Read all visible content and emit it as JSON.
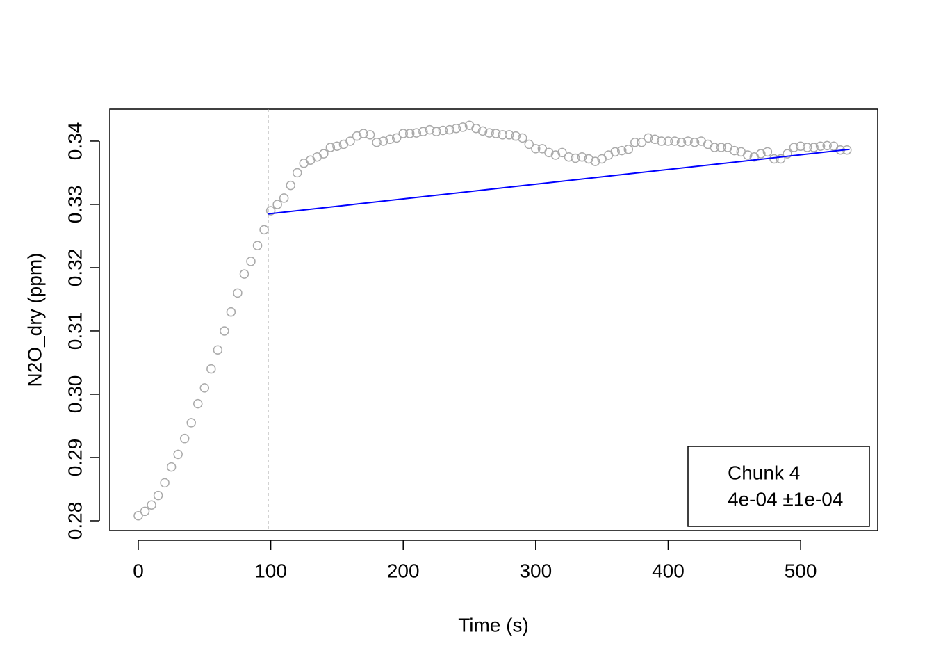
{
  "chart_data": {
    "type": "scatter",
    "x_label": "Time (s)",
    "y_label": "N2O_dry (ppm)",
    "x": [
      0,
      5,
      10,
      15,
      20,
      25,
      30,
      35,
      40,
      45,
      50,
      55,
      60,
      65,
      70,
      75,
      80,
      85,
      90,
      95,
      100,
      105,
      110,
      115,
      120,
      125,
      130,
      135,
      140,
      145,
      150,
      155,
      160,
      165,
      170,
      175,
      180,
      185,
      190,
      195,
      200,
      205,
      210,
      215,
      220,
      225,
      230,
      235,
      240,
      245,
      250,
      255,
      260,
      265,
      270,
      275,
      280,
      285,
      290,
      295,
      300,
      305,
      310,
      315,
      320,
      325,
      330,
      335,
      340,
      345,
      350,
      355,
      360,
      365,
      370,
      375,
      380,
      385,
      390,
      395,
      400,
      405,
      410,
      415,
      420,
      425,
      430,
      435,
      440,
      445,
      450,
      455,
      460,
      465,
      470,
      475,
      480,
      485,
      490,
      495,
      500,
      505,
      510,
      515,
      520,
      525,
      530,
      535
    ],
    "series": [
      {
        "color": "#aaaaaa",
        "values": [
          0.2808,
          0.2815,
          0.2825,
          0.284,
          0.286,
          0.2885,
          0.2905,
          0.293,
          0.2955,
          0.2985,
          0.301,
          0.304,
          0.307,
          0.31,
          0.313,
          0.316,
          0.319,
          0.321,
          0.3235,
          0.326,
          0.329,
          0.33,
          0.331,
          0.333,
          0.335,
          0.3365,
          0.337,
          0.3375,
          0.338,
          0.339,
          0.3392,
          0.3395,
          0.34,
          0.3408,
          0.3412,
          0.341,
          0.3398,
          0.34,
          0.3403,
          0.3405,
          0.3412,
          0.3412,
          0.3413,
          0.3415,
          0.3418,
          0.3415,
          0.3417,
          0.3418,
          0.342,
          0.3422,
          0.3425,
          0.342,
          0.3416,
          0.3413,
          0.3412,
          0.341,
          0.341,
          0.3408,
          0.3405,
          0.3395,
          0.3388,
          0.3388,
          0.3382,
          0.3378,
          0.3382,
          0.3375,
          0.3373,
          0.3375,
          0.3372,
          0.3368,
          0.3372,
          0.3378,
          0.3383,
          0.3385,
          0.3387,
          0.3398,
          0.3398,
          0.3405,
          0.3403,
          0.34,
          0.34,
          0.34,
          0.3398,
          0.34,
          0.3398,
          0.34,
          0.3395,
          0.339,
          0.339,
          0.339,
          0.3385,
          0.3383,
          0.3378,
          0.3375,
          0.338,
          0.3383,
          0.3372,
          0.3372,
          0.338,
          0.339,
          0.3392,
          0.339,
          0.339,
          0.3392,
          0.3393,
          0.3392,
          0.3386,
          0.3386
        ]
      }
    ],
    "fit": {
      "x": [
        98,
        537
      ],
      "values": [
        0.3285,
        0.3387
      ],
      "color": "#0000ff"
    },
    "vline": 98,
    "legend": [
      "Chunk 4",
      "4e-04 ±1e-04"
    ],
    "xlim": [
      -21.5,
      558.2
    ],
    "ylim": [
      0.27846,
      0.34505
    ],
    "xticks": [
      0,
      100,
      200,
      300,
      400,
      500
    ],
    "yticks": [
      0.28,
      0.29,
      {
        "value": 0.3,
        "label": "0.30"
      },
      0.31,
      0.32,
      0.33,
      0.34
    ]
  }
}
